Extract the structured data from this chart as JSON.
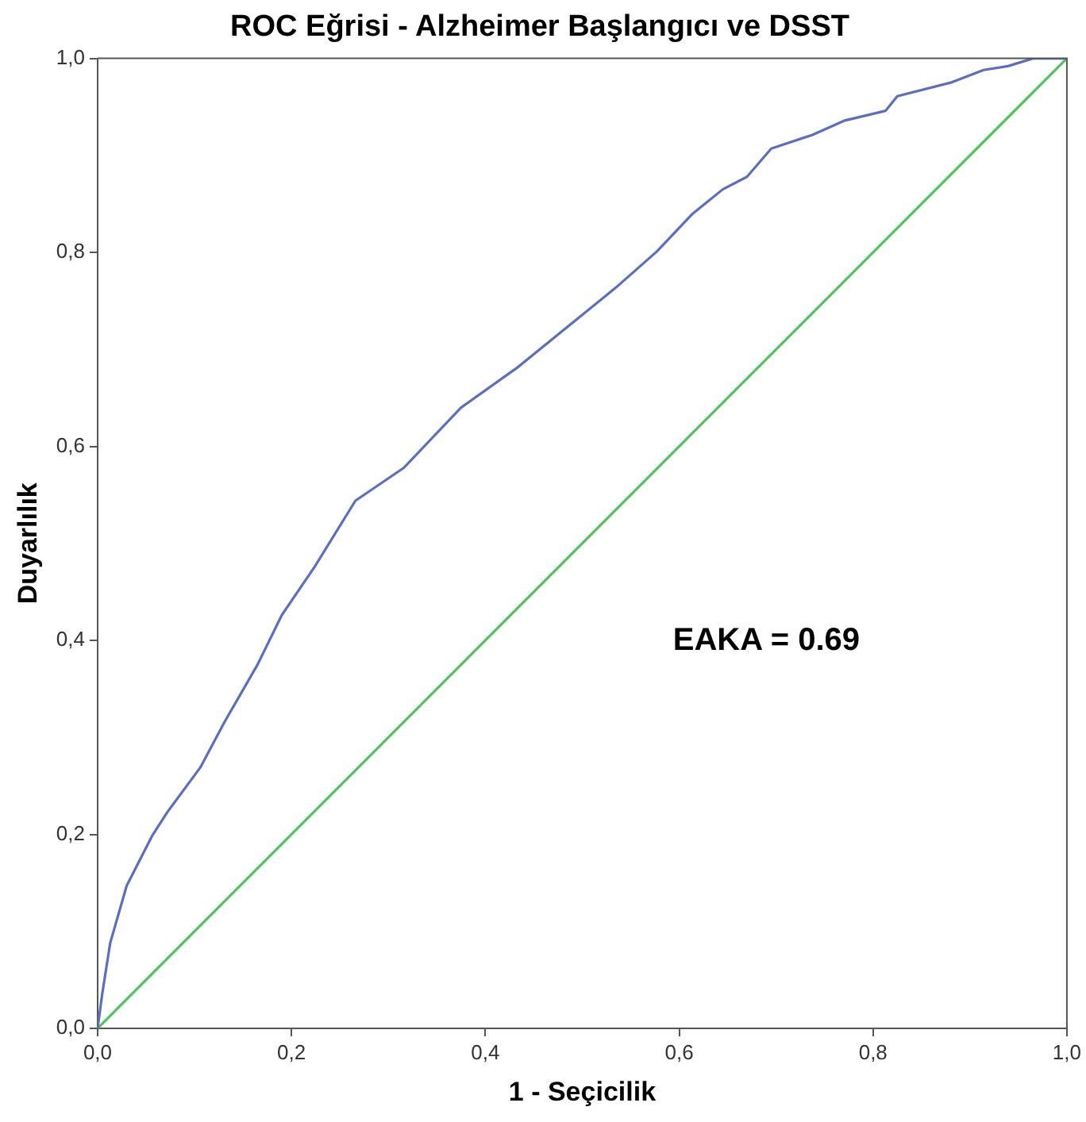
{
  "chart_data": {
    "type": "line",
    "title": "ROC Eğrisi - Alzheimer Başlangıcı ve DSST",
    "xlabel": "1 - Seçicilik",
    "ylabel": "Duyarlılık",
    "xlim": [
      0,
      1
    ],
    "ylim": [
      0,
      1
    ],
    "xticks": [
      {
        "value": 0,
        "label": "0,0"
      },
      {
        "value": 0.2,
        "label": "0,2"
      },
      {
        "value": 0.4,
        "label": "0,4"
      },
      {
        "value": 0.6,
        "label": "0,6"
      },
      {
        "value": 0.8,
        "label": "0,8"
      },
      {
        "value": 1,
        "label": "1,0"
      }
    ],
    "yticks": [
      {
        "value": 0,
        "label": "0,0"
      },
      {
        "value": 0.2,
        "label": "0,2"
      },
      {
        "value": 0.4,
        "label": "0,4"
      },
      {
        "value": 0.6,
        "label": "0,6"
      },
      {
        "value": 0.8,
        "label": "0,8"
      },
      {
        "value": 1,
        "label": "1,0"
      }
    ],
    "grid": false,
    "legend": false,
    "marker": "none",
    "line_style": "solid",
    "annotations": [
      "EAKA = 0.69"
    ],
    "series": [
      {
        "color": "#5b6ec2",
        "x": [
          0,
          0.005,
          0.013,
          0.03,
          0.056,
          0.072,
          0.106,
          0.131,
          0.165,
          0.19,
          0.224,
          0.266,
          0.316,
          0.375,
          0.434,
          0.493,
          0.535,
          0.577,
          0.614,
          0.645,
          0.67,
          0.695,
          0.737,
          0.771,
          0.813,
          0.825,
          0.88,
          0.914,
          0.939,
          0.965,
          1
        ],
        "values": [
          0,
          0.037,
          0.088,
          0.147,
          0.198,
          0.223,
          0.269,
          0.316,
          0.375,
          0.426,
          0.476,
          0.544,
          0.578,
          0.64,
          0.682,
          0.73,
          0.764,
          0.801,
          0.84,
          0.865,
          0.878,
          0.907,
          0.921,
          0.936,
          0.946,
          0.961,
          0.975,
          0.988,
          0.992,
          1,
          1
        ]
      },
      {
        "color": "#4fc45a",
        "x": [
          0,
          1
        ],
        "values": [
          0,
          1
        ]
      }
    ]
  }
}
